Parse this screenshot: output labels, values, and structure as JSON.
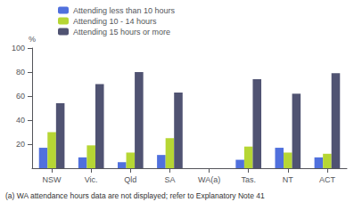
{
  "chart_data": {
    "type": "bar",
    "categories": [
      "NSW",
      "Vic.",
      "Qld",
      "SA",
      "WA(a)",
      "Tas.",
      "NT",
      "ACT"
    ],
    "series": [
      {
        "name": "Attending less than 10 hours",
        "values": [
          17,
          9,
          5,
          11,
          0,
          7,
          17,
          9
        ]
      },
      {
        "name": "Attending 10 - 14 hours",
        "values": [
          30,
          19,
          13,
          25,
          0,
          18,
          13,
          12
        ]
      },
      {
        "name": "Attending 15 hours or more",
        "values": [
          54,
          70,
          80,
          63,
          0,
          74,
          62,
          79
        ]
      }
    ],
    "ylabel": "%",
    "ylim": [
      0,
      100
    ],
    "yticks": [
      20,
      40,
      60,
      80,
      100
    ],
    "grid": false,
    "legend": "upper left",
    "annotations": [
      "(a) WA attendance hours data are not displayed; refer to Explanatory Note 41"
    ]
  }
}
